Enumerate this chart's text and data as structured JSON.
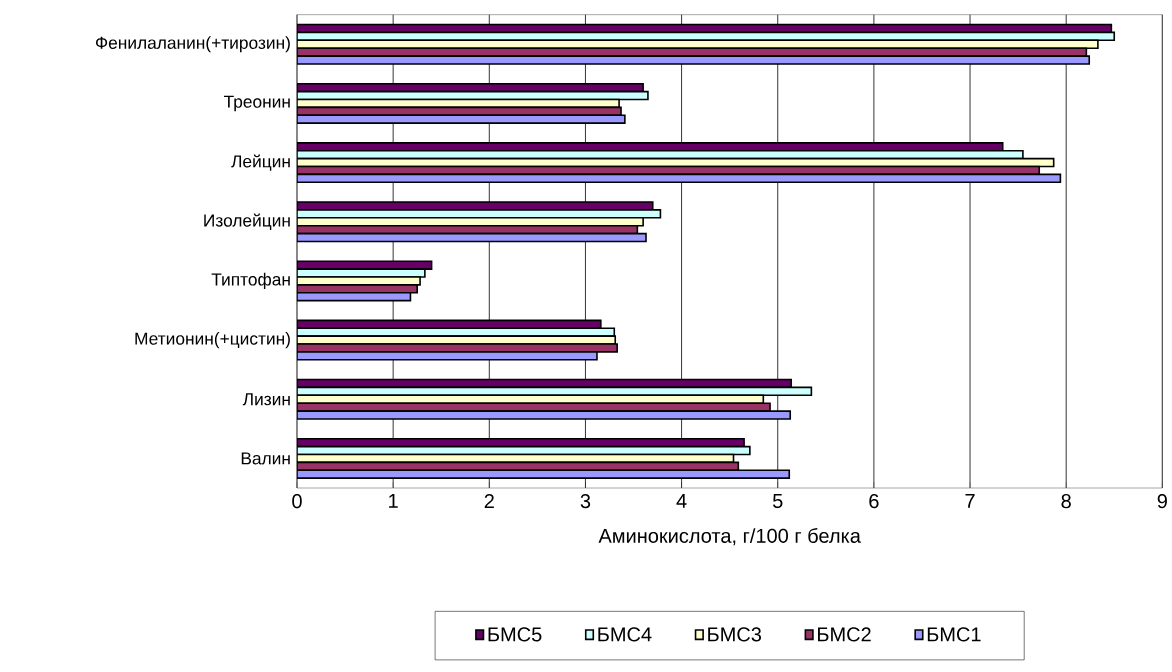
{
  "chart_data": {
    "type": "bar",
    "orientation": "horizontal",
    "categories": [
      "Фенилаланин(+тирозин)",
      "Треонин",
      "Лейцин",
      "Изолейцин",
      "Типтофан",
      "Метионин(+цистин)",
      "Лизин",
      "Валин"
    ],
    "series": [
      {
        "name": "БМС5",
        "color": "#660066",
        "values": [
          8.47,
          3.6,
          7.34,
          3.7,
          1.4,
          3.16,
          5.14,
          4.65
        ]
      },
      {
        "name": "БМС4",
        "color": "#ccffff",
        "values": [
          8.5,
          3.65,
          7.55,
          3.78,
          1.33,
          3.3,
          5.35,
          4.71
        ]
      },
      {
        "name": "БМС3",
        "color": "#ffffcc",
        "values": [
          8.33,
          3.35,
          7.87,
          3.6,
          1.28,
          3.31,
          4.85,
          4.54
        ]
      },
      {
        "name": "БМС2",
        "color": "#993366",
        "values": [
          8.21,
          3.37,
          7.72,
          3.54,
          1.25,
          3.33,
          4.92,
          4.59
        ]
      },
      {
        "name": "БМС1",
        "color": "#9999ff",
        "values": [
          8.24,
          3.41,
          7.94,
          3.63,
          1.18,
          3.12,
          5.13,
          5.12
        ]
      }
    ],
    "xlabel": "Аминокислота, г/100 г белка",
    "xlim": [
      0,
      9
    ],
    "xticks": [
      0,
      1,
      2,
      3,
      4,
      5,
      6,
      7,
      8,
      9
    ],
    "grid": "x",
    "legend": "bottom"
  }
}
